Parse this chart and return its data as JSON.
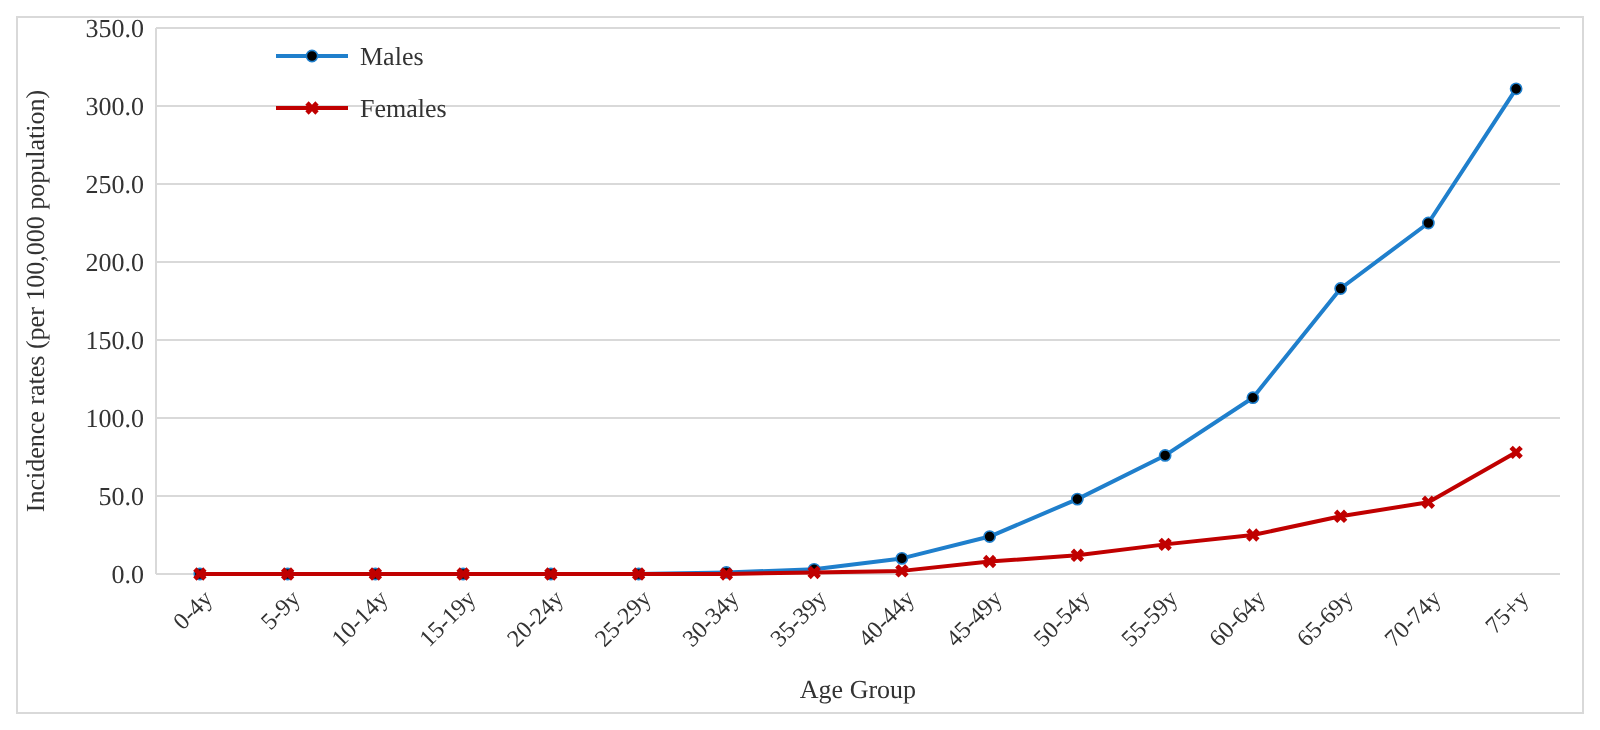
{
  "chart_data": {
    "type": "line",
    "xlabel": "Age Group",
    "ylabel": "Incidence rates (per 100,000 population)",
    "categories": [
      "0-4y",
      "5-9y",
      "10-14y",
      "15-19y",
      "20-24y",
      "25-29y",
      "30-34y",
      "35-39y",
      "40-44y",
      "45-49y",
      "50-54y",
      "55-59y",
      "60-64y",
      "65-69y",
      "70-74y",
      "75+y"
    ],
    "series": [
      {
        "name": "Males",
        "color": "#1f7fcc",
        "marker": "circle",
        "values": [
          0,
          0,
          0,
          0,
          0,
          0,
          1,
          3,
          10,
          24,
          48,
          76,
          113,
          183,
          225,
          311
        ]
      },
      {
        "name": "Females",
        "color": "#c00000",
        "marker": "cross",
        "values": [
          0,
          0,
          0,
          0,
          0,
          0,
          0,
          1,
          2,
          8,
          12,
          19,
          25,
          37,
          46,
          78
        ]
      }
    ],
    "ylim": [
      0,
      350
    ],
    "yticks": [
      {
        "value": 0,
        "label": "0.0"
      },
      {
        "value": 50,
        "label": "50.0"
      },
      {
        "value": 100,
        "label": "100.0"
      },
      {
        "value": 150,
        "label": "150.0"
      },
      {
        "value": 200,
        "label": "200.0"
      },
      {
        "value": 250,
        "label": "250.0"
      },
      {
        "value": 300,
        "label": "300.0"
      },
      {
        "value": 350,
        "label": "350.0"
      }
    ],
    "grid": "y",
    "legend": "top left",
    "line_style": "solid"
  }
}
